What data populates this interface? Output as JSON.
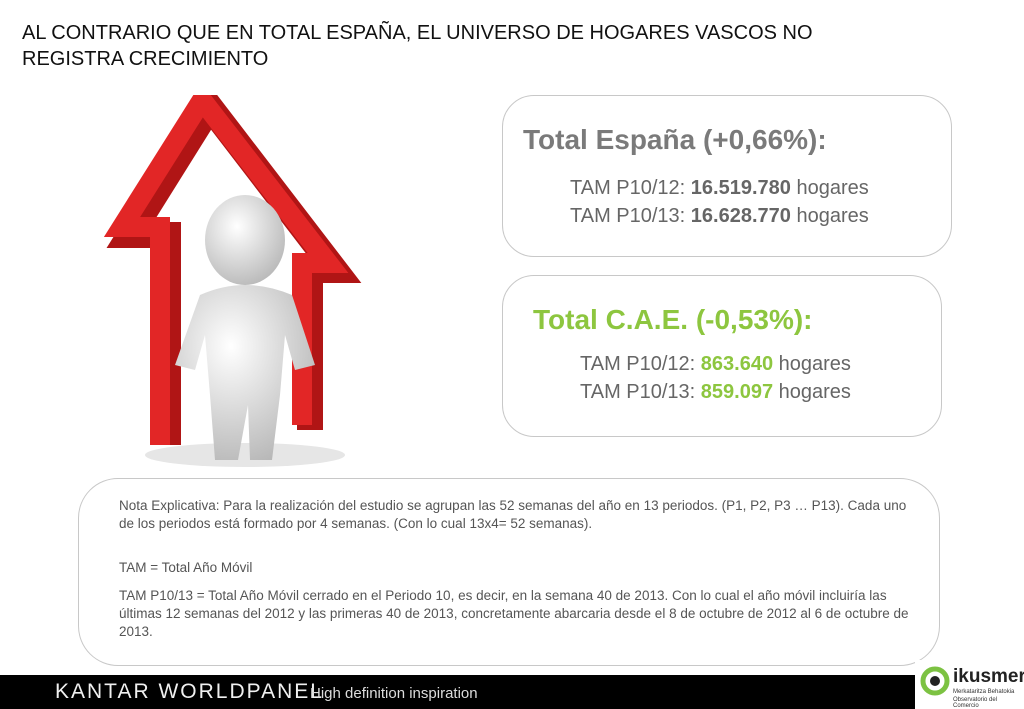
{
  "header": {
    "title": "AL CONTRARIO QUE EN TOTAL ESPAÑA, EL UNIVERSO DE HOGARES VASCOS NO REGISTRA CRECIMIENTO"
  },
  "boxes": [
    {
      "heading": "Total España (+0,66%):",
      "lines": [
        {
          "label": "TAM P10/12:",
          "value": "16.519.780",
          "unit": "hogares"
        },
        {
          "label": "TAM P10/13:",
          "value": "16.628.770",
          "unit": "hogares"
        }
      ]
    },
    {
      "heading": "Total C.A.E. (-0,53%):",
      "lines": [
        {
          "label": "TAM P10/12:",
          "value": "863.640",
          "unit": "hogares"
        },
        {
          "label": "TAM P10/13:",
          "value": "859.097",
          "unit": "hogares"
        }
      ]
    }
  ],
  "note": {
    "paragraphs": [
      "Nota Explicativa: Para la realización del estudio se agrupan las 52 semanas del año en 13 periodos. (P1, P2, P3 … P13). Cada uno de los periodos está formado por 4 semanas. (Con lo cual 13x4= 52 semanas).",
      "TAM = Total Año Móvil",
      "TAM P10/13 = Total Año Móvil cerrado en el Periodo 10, es decir, en la semana 40 de 2013. Con lo cual el año móvil incluiría las últimas 12 semanas del 2012 y las primeras 40 de 2013, concretamente abarcaria desde el 8 de octubre de 2012 al 6 de octubre de 2013."
    ]
  },
  "footer": {
    "brand": "KANTAR WORLDPANEL",
    "tagline": "High definition inspiration",
    "logo": "ikusmer",
    "logo_sub1": "Merkataritza Behatokia",
    "logo_sub2": "Observatorio del Comercio"
  }
}
